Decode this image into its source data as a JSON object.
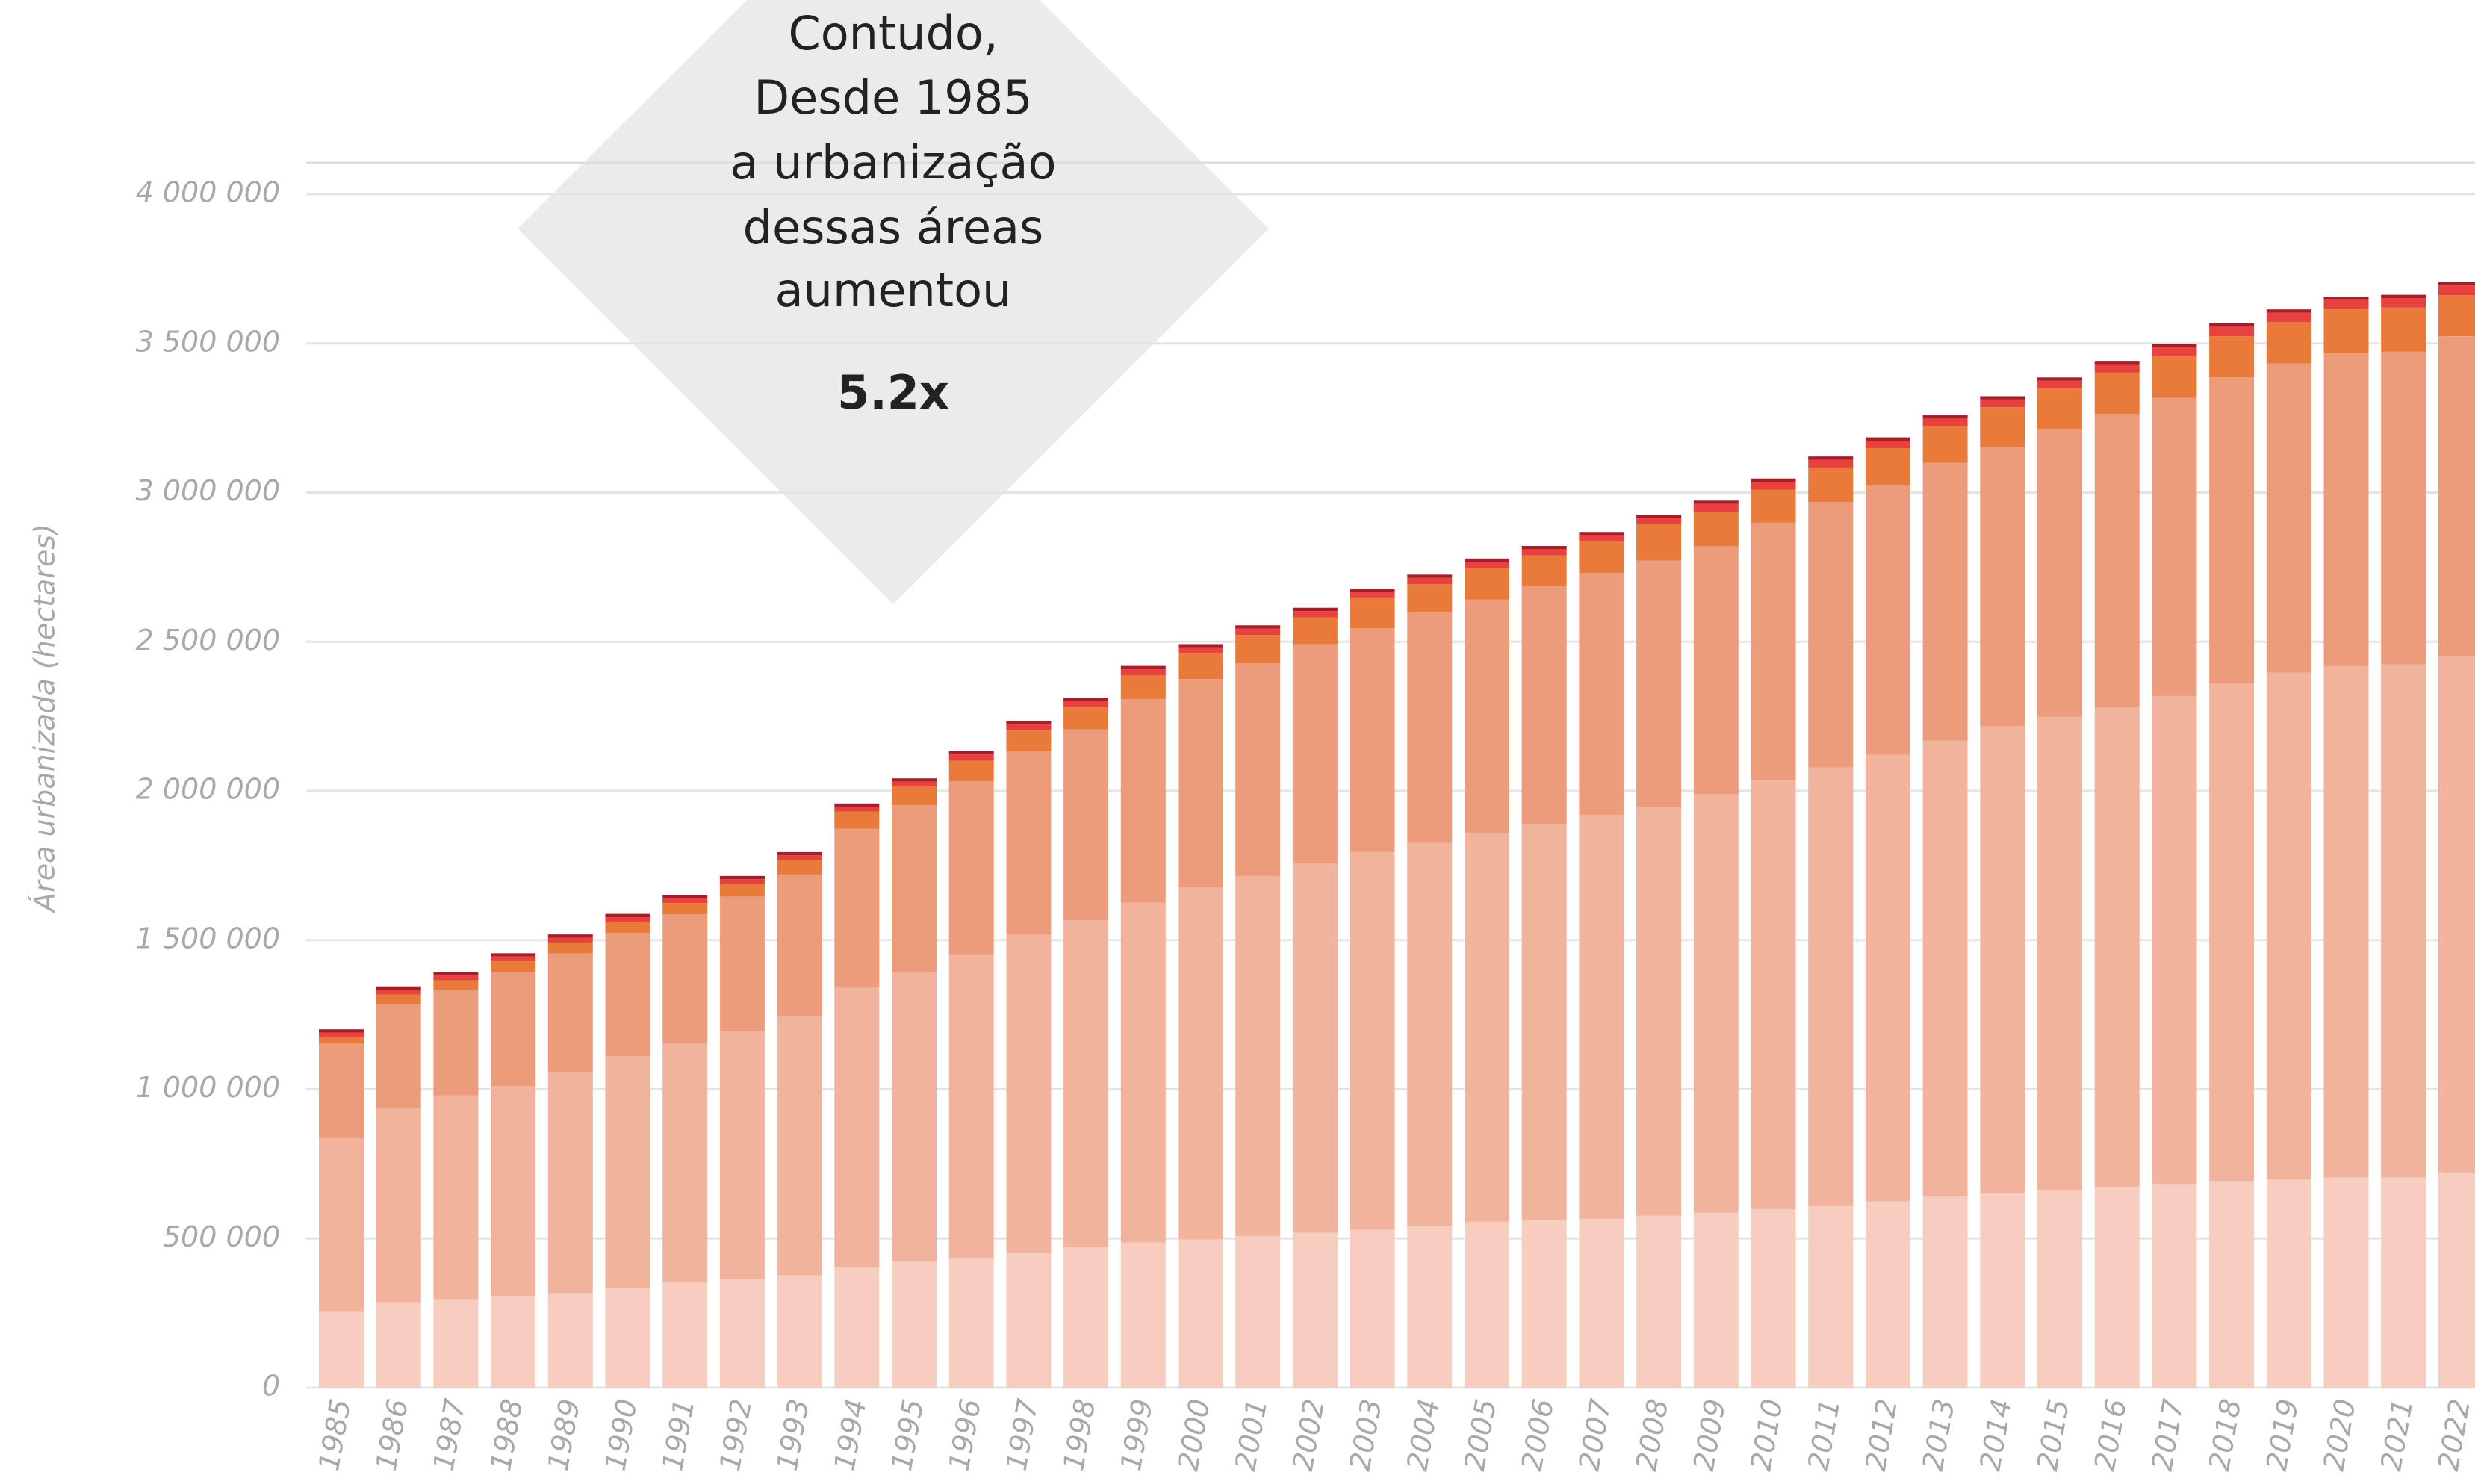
{
  "chart_data": {
    "type": "stacked_bar",
    "ylabel": "Área urbanizada (hectares)",
    "annotation": {
      "lines": [
        "Contudo,",
        "Desde 1985",
        "a urbanização",
        "dessas áreas",
        "aumentou"
      ],
      "highlight": "5.2x"
    },
    "categories": [
      "1985",
      "1986",
      "1987",
      "1988",
      "1989",
      "1990",
      "1991",
      "1992",
      "1993",
      "1994",
      "1995",
      "1996",
      "1997",
      "1998",
      "1999",
      "2000",
      "2001",
      "2002",
      "2003",
      "2004",
      "2005",
      "2006",
      "2007",
      "2008",
      "2009",
      "2010",
      "2011",
      "2012",
      "2013",
      "2014",
      "2015",
      "2016",
      "2017",
      "2018",
      "2019",
      "2020",
      "2021",
      "2022"
    ],
    "ylim": [
      0,
      4000000
    ],
    "yticks": [
      0,
      {
        "value": 500000,
        "label": "500 000"
      },
      {
        "value": 1000000,
        "label": "1 000 000"
      },
      {
        "value": 1500000,
        "label": "1 500 000"
      },
      {
        "value": 2000000,
        "label": "2 000 000"
      },
      {
        "value": 2500000,
        "label": "2 500 000"
      },
      {
        "value": 3000000,
        "label": "3 000 000"
      },
      {
        "value": 3500000,
        "label": "3 500 000"
      },
      {
        "value": 4000000,
        "label": "4 000 000"
      }
    ],
    "grid": true,
    "series": [
      {
        "color": "#f6cdbf",
        "values": [
          254000,
          286000,
          296000,
          307000,
          317000,
          333000,
          354000,
          365000,
          376000,
          402000,
          423000,
          434000,
          450000,
          471000,
          487000,
          497000,
          508000,
          519000,
          529000,
          540000,
          556000,
          561000,
          566000,
          577000,
          587000,
          598000,
          608000,
          624000,
          640000,
          651000,
          661000,
          672000,
          683000,
          693000,
          698000,
          704000,
          704000,
          720000
        ]
      },
      {
        "color": "#f2b39c",
        "values": [
          582000,
          651000,
          683000,
          704000,
          741000,
          778000,
          799000,
          831000,
          868000,
          942000,
          968000,
          1016000,
          1069000,
          1095000,
          1138000,
          1180000,
          1206000,
          1238000,
          1265000,
          1286000,
          1302000,
          1328000,
          1354000,
          1370000,
          1402000,
          1439000,
          1471000,
          1497000,
          1529000,
          1566000,
          1587000,
          1608000,
          1635000,
          1667000,
          1698000,
          1714000,
          1720000,
          1730000
        ]
      },
      {
        "color": "#ec9c7a",
        "values": [
          317000,
          349000,
          354000,
          381000,
          397000,
          413000,
          434000,
          450000,
          476000,
          529000,
          561000,
          582000,
          614000,
          640000,
          683000,
          698000,
          714000,
          735000,
          751000,
          772000,
          783000,
          799000,
          810000,
          825000,
          831000,
          862000,
          889000,
          905000,
          931000,
          937000,
          963000,
          984000,
          1000000,
          1026000,
          1037000,
          1048000,
          1048000,
          1074000
        ]
      },
      {
        "color": "#ea7a3a",
        "values": [
          21000,
          32000,
          32000,
          37000,
          37000,
          37000,
          37000,
          42000,
          48000,
          58000,
          63000,
          69000,
          69000,
          74000,
          79000,
          85000,
          95000,
          90000,
          101000,
          95000,
          106000,
          101000,
          106000,
          122000,
          116000,
          111000,
          116000,
          122000,
          122000,
          132000,
          138000,
          138000,
          138000,
          138000,
          138000,
          148000,
          148000,
          138000
        ]
      },
      {
        "color": "#e8413f",
        "values": [
          16000,
          16000,
          16000,
          16000,
          16000,
          16000,
          16000,
          16000,
          16000,
          16000,
          16000,
          21000,
          21000,
          21000,
          21000,
          21000,
          21000,
          21000,
          21000,
          21000,
          21000,
          21000,
          21000,
          21000,
          26000,
          26000,
          26000,
          26000,
          26000,
          26000,
          26000,
          26000,
          32000,
          32000,
          32000,
          32000,
          32000,
          32000
        ]
      },
      {
        "color": "#a3202a",
        "values": [
          11000,
          11000,
          11000,
          11000,
          11000,
          11000,
          11000,
          11000,
          11000,
          11000,
          11000,
          11000,
          11000,
          11000,
          11000,
          11000,
          11000,
          11000,
          11000,
          11000,
          11000,
          11000,
          11000,
          11000,
          11000,
          11000,
          11000,
          11000,
          11000,
          11000,
          11000,
          11000,
          11000,
          11000,
          11000,
          11000,
          11000,
          11000
        ]
      }
    ]
  }
}
